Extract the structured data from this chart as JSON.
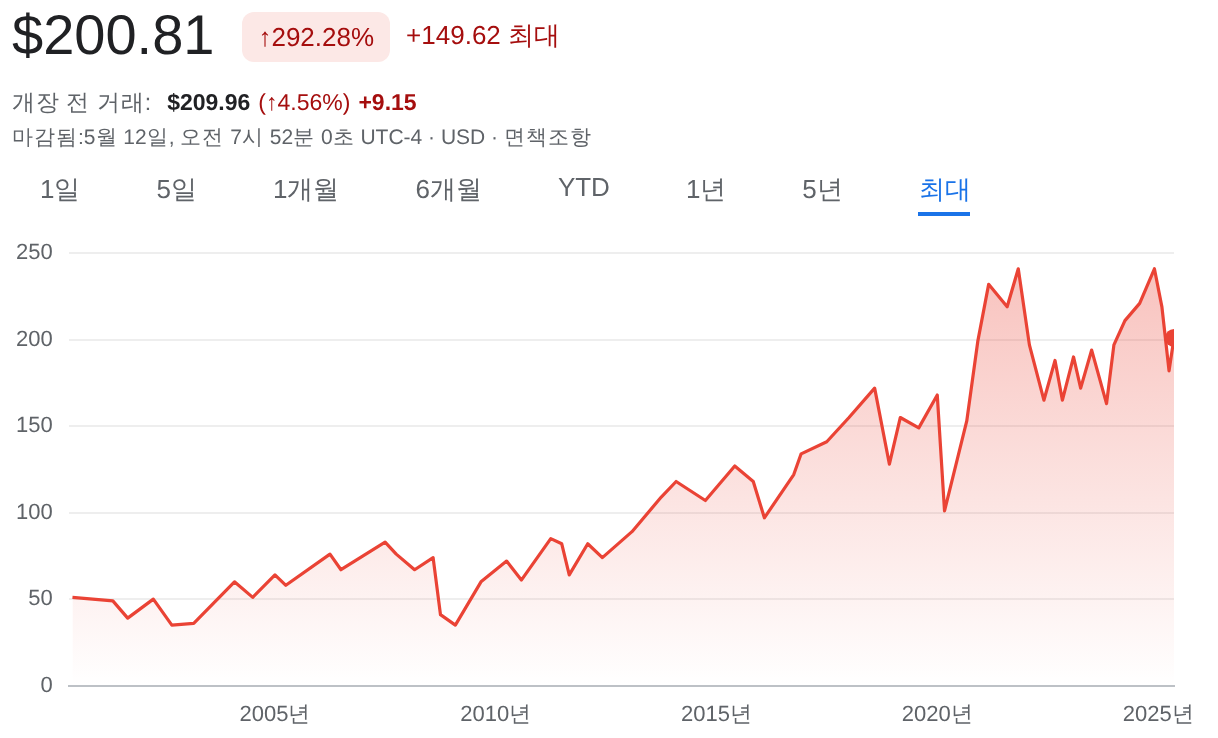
{
  "chart_data": {
    "type": "area",
    "title": "$200.81",
    "annotations": [
      "↑292.28%",
      "+149.62 최대",
      "개장 전 거래:",
      "$209.96",
      "(↑4.56%)",
      "+9.15",
      "마감됨:5월 12일, 오전 7시 52분 0초 UTC-4 · USD · 면책조항",
      "1일",
      "5일",
      "1개월",
      "6개월",
      "YTD",
      "1년",
      "5년",
      "최대"
    ],
    "series": [
      {
        "color": "#ea4335",
        "x": [
          "2000-06",
          "2001-05",
          "2001-09",
          "2002-04",
          "2002-09",
          "2003-03",
          "2004-02",
          "2004-07",
          "2005-01",
          "2005-04",
          "2006-04",
          "2006-07",
          "2007-07",
          "2007-10",
          "2008-03",
          "2008-08",
          "2008-10",
          "2009-02",
          "2009-09",
          "2010-04",
          "2010-08",
          "2011-04",
          "2011-07",
          "2011-09",
          "2012-02",
          "2012-06",
          "2013-02",
          "2013-10",
          "2014-02",
          "2014-10",
          "2015-06",
          "2015-11",
          "2016-02",
          "2016-10",
          "2016-12",
          "2017-07",
          "2018-01",
          "2018-08",
          "2018-12",
          "2019-03",
          "2019-08",
          "2020-01",
          "2020-03",
          "2020-09",
          "2020-12",
          "2021-03",
          "2021-08",
          "2021-11",
          "2022-02",
          "2022-06",
          "2022-09",
          "2022-11",
          "2023-02",
          "2023-04",
          "2023-07",
          "2023-11",
          "2024-01",
          "2024-04",
          "2024-08",
          "2024-12",
          "2025-02",
          "2025-04",
          "2025-05-12"
        ],
        "values": [
          51,
          49,
          39,
          50,
          35,
          36,
          60,
          51,
          64,
          58,
          76,
          67,
          83,
          76,
          67,
          74,
          41,
          35,
          60,
          72,
          61,
          85,
          82,
          64,
          82,
          74,
          89,
          109,
          118,
          107,
          127,
          118,
          97,
          122,
          134,
          141,
          155,
          172,
          128,
          155,
          149,
          168,
          101,
          153,
          199,
          232,
          219,
          241,
          197,
          165,
          188,
          165,
          190,
          172,
          194,
          163,
          197,
          211,
          221,
          241,
          219,
          182,
          201
        ]
      }
    ],
    "xlim": [
      "2000-05",
      "2025-05-12"
    ],
    "xticks": [
      {
        "value": "2005",
        "label": "2005년"
      },
      {
        "value": "2010",
        "label": "2010년"
      },
      {
        "value": "2015",
        "label": "2015년"
      },
      {
        "value": "2020",
        "label": "2020년"
      },
      {
        "value": "2025",
        "label": "2025년"
      }
    ],
    "ylim": [
      0,
      250
    ],
    "yticks": [
      0,
      50,
      100,
      150,
      200,
      250
    ],
    "grid": "y"
  }
}
